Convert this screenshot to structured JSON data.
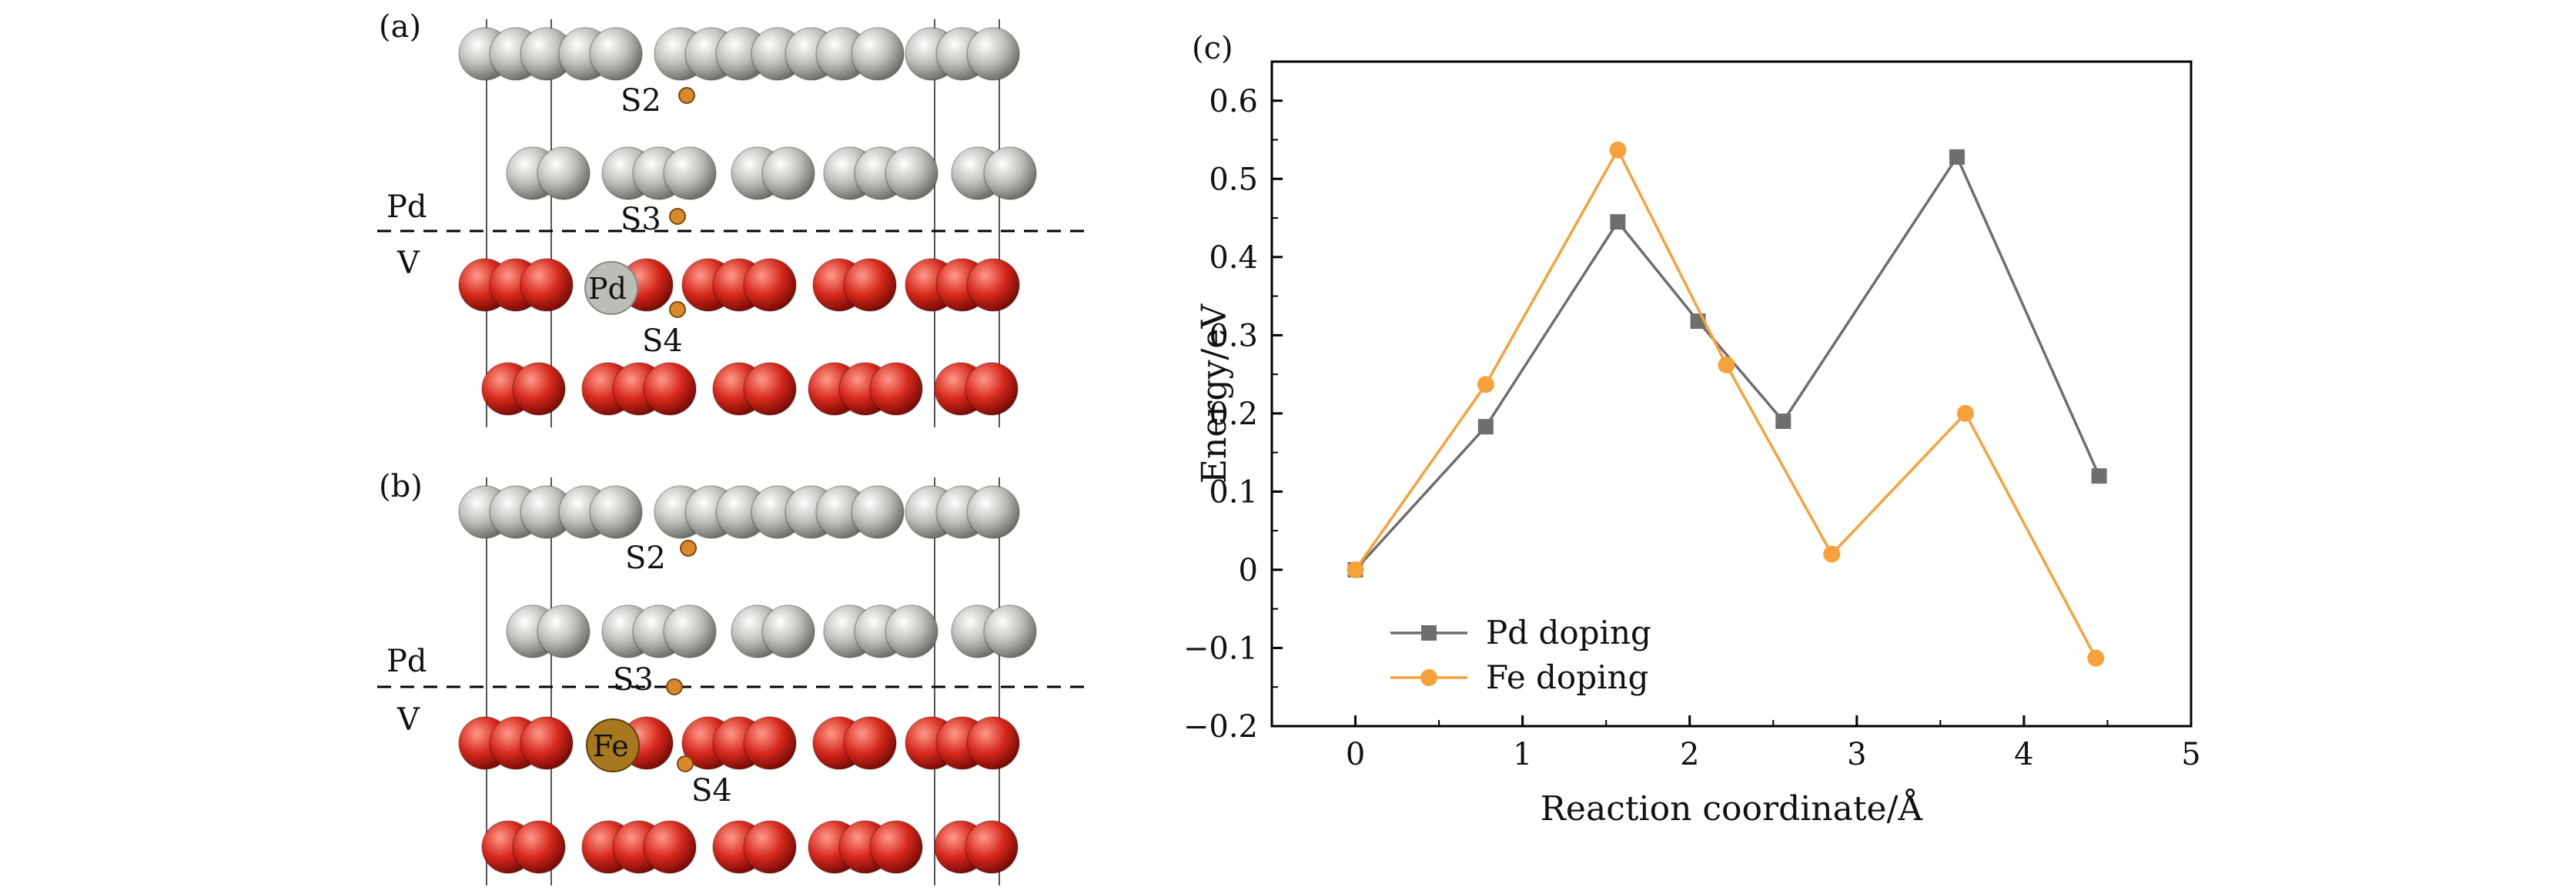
{
  "panels": {
    "a": {
      "label": "(a)",
      "layer_top": "Pd",
      "layer_bottom": "V",
      "sites": [
        "S2",
        "S3",
        "S4"
      ],
      "dopant": "Pd"
    },
    "b": {
      "label": "(b)",
      "layer_top": "Pd",
      "layer_bottom": "V",
      "sites": [
        "S2",
        "S3",
        "S4"
      ],
      "dopant": "Fe"
    },
    "c": {
      "label": "(c)"
    }
  },
  "colors": {
    "pd_atom": "#bdbdb8",
    "v_atom": "#d6281c",
    "fe_atom": "#a8781e",
    "h_atom": "#d9882a",
    "pd_series": "#6e6e6e",
    "fe_series": "#f7a13a"
  },
  "chart_data": {
    "type": "line",
    "xlabel": "Reaction coordinate/Å",
    "ylabel": "Energy/eV",
    "xlim": [
      -0.5,
      5
    ],
    "ylim": [
      -0.2,
      0.65
    ],
    "x_ticks": [
      "0",
      "1",
      "2",
      "3",
      "4",
      "5"
    ],
    "y_ticks": [
      "−0.2",
      "−0.1",
      "0",
      "0.1",
      "0.2",
      "0.3",
      "0.4",
      "0.5",
      "0.6"
    ],
    "legend_position": "bottom-left",
    "series": [
      {
        "name": "Pd doping",
        "marker": "square",
        "x": [
          0,
          0.78,
          1.57,
          2.05,
          2.56,
          3.6,
          4.45
        ],
        "y": [
          0,
          0.183,
          0.445,
          0.318,
          0.19,
          0.528,
          0.12
        ]
      },
      {
        "name": "Fe doping",
        "marker": "circle",
        "x": [
          0,
          0.78,
          1.57,
          2.22,
          2.85,
          3.65,
          4.43
        ],
        "y": [
          0,
          0.237,
          0.537,
          0.262,
          0.02,
          0.2,
          -0.113
        ]
      }
    ]
  }
}
